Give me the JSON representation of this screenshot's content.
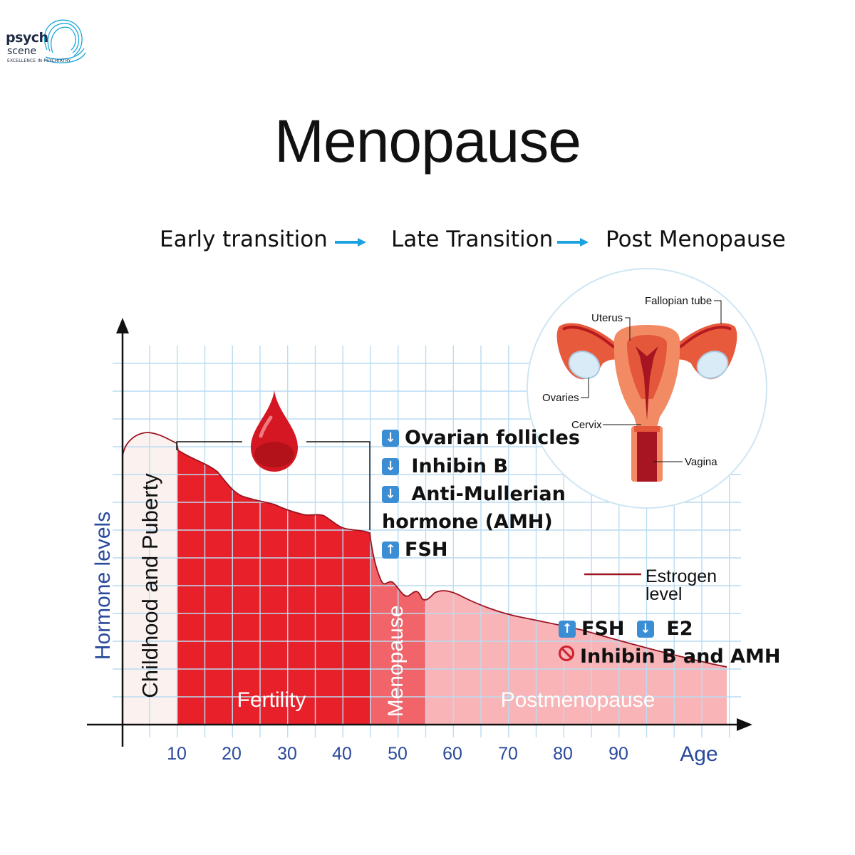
{
  "brand": {
    "name_line1": "psych",
    "name_line2": "scene",
    "tagline": "EXCELLENCE IN PSYCHIATRY"
  },
  "title": "Menopause",
  "stages": [
    "Early transition",
    "Late Transition",
    "Post Menopause"
  ],
  "axes": {
    "y_label": "Hormone levels",
    "x_label": "Age",
    "x_ticks": [
      "10",
      "20",
      "30",
      "40",
      "50",
      "60",
      "70",
      "80",
      "90"
    ]
  },
  "phases": {
    "childhood": "Childhood and Puberty",
    "fertility": "Fertility",
    "menopause": "Menopause",
    "postmenopause": "Postmenopause"
  },
  "legend": {
    "line1": "Estrogen",
    "line2": "level"
  },
  "annotations_transition": [
    {
      "direction": "down",
      "text": "Ovarian follicles"
    },
    {
      "direction": "down",
      "text": "Inhibin B"
    },
    {
      "direction": "down",
      "text": "Anti-Mullerian"
    },
    {
      "direction": "none",
      "text": "hormone (AMH)"
    },
    {
      "direction": "up",
      "text": "FSH"
    }
  ],
  "annotations_post": {
    "line1": [
      {
        "direction": "up",
        "text": "FSH"
      },
      {
        "direction": "down",
        "text": "E2"
      }
    ],
    "line2": {
      "direction": "none-symbol",
      "text": "Inhibin B and AMH"
    }
  },
  "anatomy": {
    "fallopian_tube": "Fallopian tube",
    "uterus": "Uterus",
    "ovaries": "Ovaries",
    "cervix": "Cervix",
    "vagina": "Vagina"
  },
  "colors": {
    "fertility": "#e8202a",
    "menopause": "#f0646a",
    "postmenopause": "#f8b4b6",
    "childhood": "#fbf1ef",
    "estrogen_line": "#9b1420",
    "grid": "#b9dcf2",
    "axis_label": "#2a4a9c",
    "stage_arrow": "#1ba0e0",
    "badge": "#3b8ed4"
  }
}
